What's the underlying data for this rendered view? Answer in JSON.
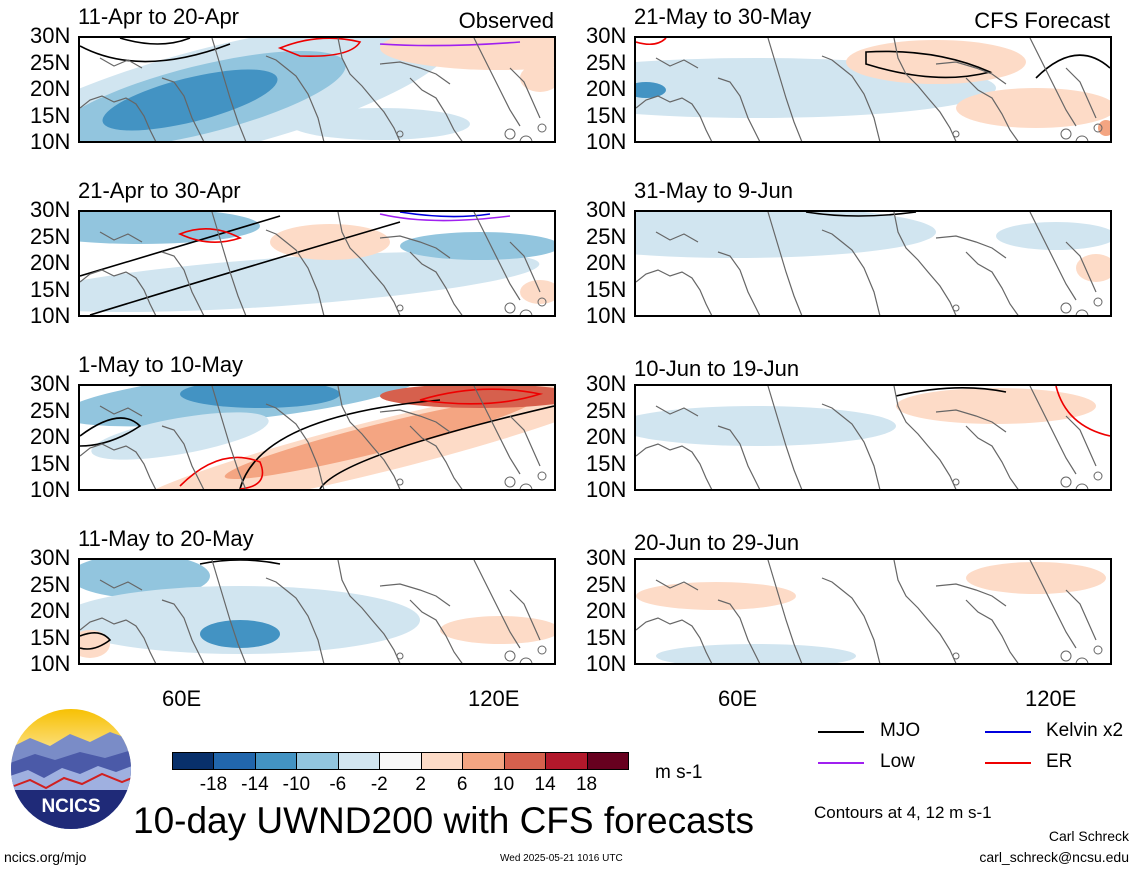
{
  "observed_tag": "Observed",
  "forecast_tag": "CFS Forecast",
  "panels_left": [
    {
      "title": "11-Apr to 20-Apr"
    },
    {
      "title": "21-Apr to 30-Apr"
    },
    {
      "title": "1-May to 10-May"
    },
    {
      "title": "11-May to 20-May"
    }
  ],
  "panels_right": [
    {
      "title": "21-May to 30-May"
    },
    {
      "title": "31-May to 9-Jun"
    },
    {
      "title": "10-Jun to 19-Jun"
    },
    {
      "title": "20-Jun to 29-Jun"
    }
  ],
  "lat_labels": [
    "30N",
    "25N",
    "20N",
    "15N",
    "10N"
  ],
  "lon_labels": [
    "60E",
    "120E"
  ],
  "colorbar": {
    "colors": [
      "#08306b",
      "#2166ac",
      "#4393c3",
      "#92c5de",
      "#d1e5f0",
      "#f7f7f7",
      "#fddbc7",
      "#f4a582",
      "#d6604d",
      "#b2182b",
      "#67001f"
    ],
    "labels": [
      "-18",
      "-14",
      "-10",
      "-6",
      "-2",
      "2",
      "6",
      "10",
      "14",
      "18"
    ],
    "units": "m s-1"
  },
  "legend": {
    "mjo": {
      "label": "MJO",
      "color": "#000000"
    },
    "kelvin": {
      "label": "Kelvin x2",
      "color": "#0000dd"
    },
    "low": {
      "label": "Low",
      "color": "#a020f0"
    },
    "er": {
      "label": "ER",
      "color": "#ee0000"
    },
    "contours_note": "Contours at 4, 12 m s-1"
  },
  "logo_text": "NCICS",
  "main_title": "10-day UWND200 with CFS forecasts",
  "author": "Carl Schreck",
  "email": "carl_schreck@ncsu.edu",
  "website": "ncics.org/mjo",
  "timestamp": "Wed 2025-05-21 1016 UTC"
}
